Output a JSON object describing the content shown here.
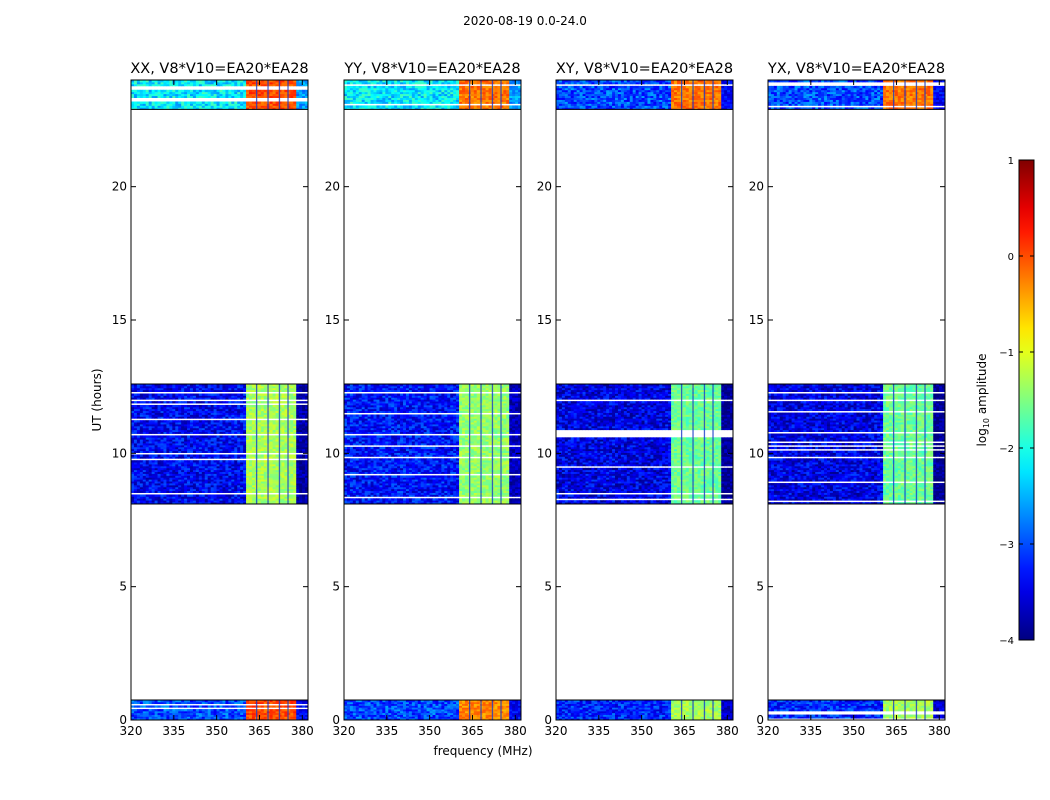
{
  "figure": {
    "suptitle": "2020-08-19 0.0-24.0",
    "xlabel": "frequency (MHz)",
    "ylabel": "UT (hours)"
  },
  "colorbar": {
    "label": "log10 amplitude",
    "label_base": "log",
    "label_sub": "10",
    "label_rest": " amplitude",
    "ticks": [
      "1",
      "0",
      "−1",
      "−2",
      "−3",
      "−4"
    ],
    "tick_values": [
      1,
      0,
      -1,
      -2,
      -3,
      -4
    ],
    "range": [
      -4,
      1
    ],
    "colormap": "jet",
    "colors": [
      "#00007f",
      "#0000ff",
      "#007fff",
      "#00ffff",
      "#7fff7f",
      "#ffff00",
      "#ff7f00",
      "#ff0000",
      "#7f0000"
    ]
  },
  "chart_data": [
    {
      "type": "heatmap",
      "title": "XX, V8*V10=EA20*EA28",
      "xlabel": "",
      "ylabel": "UT (hours)",
      "xlim": [
        320,
        382
      ],
      "ylim": [
        0,
        24
      ],
      "xticks": [
        320,
        335,
        350,
        365,
        380
      ],
      "yticks": [
        0,
        5,
        10,
        15,
        20
      ],
      "data_time_ranges_hours": [
        [
          0.0,
          0.75
        ],
        [
          8.1,
          12.6
        ],
        [
          22.9,
          24.0
        ]
      ],
      "bright_band_MHz": [
        360,
        378
      ],
      "band_log_amplitude": {
        "early": 0.0,
        "mid": -1.3,
        "late": 0.0
      },
      "background_log_amplitude": {
        "early": -3.0,
        "mid": -3.4,
        "late": -2.2
      }
    },
    {
      "type": "heatmap",
      "title": "YY, V8*V10=EA20*EA28",
      "xlabel": "frequency (MHz)",
      "ylabel": "",
      "xlim": [
        320,
        382
      ],
      "ylim": [
        0,
        24
      ],
      "xticks": [
        320,
        335,
        350,
        365,
        380
      ],
      "yticks": [
        0,
        5,
        10,
        15,
        20
      ],
      "data_time_ranges_hours": [
        [
          0.0,
          0.75
        ],
        [
          8.1,
          12.6
        ],
        [
          22.9,
          24.0
        ]
      ],
      "bright_band_MHz": [
        360,
        378
      ],
      "band_log_amplitude": {
        "early": -0.3,
        "mid": -1.4,
        "late": -0.2
      },
      "background_log_amplitude": {
        "early": -3.0,
        "mid": -3.3,
        "late": -2.2
      }
    },
    {
      "type": "heatmap",
      "title": "XY, V8*V10=EA20*EA28",
      "xlabel": "",
      "ylabel": "",
      "xlim": [
        320,
        382
      ],
      "ylim": [
        0,
        24
      ],
      "xticks": [
        320,
        335,
        350,
        365,
        380
      ],
      "yticks": [
        0,
        5,
        10,
        15,
        20
      ],
      "data_time_ranges_hours": [
        [
          0.0,
          0.75
        ],
        [
          8.1,
          12.6
        ],
        [
          22.9,
          24.0
        ]
      ],
      "bright_band_MHz": [
        360,
        378
      ],
      "band_log_amplitude": {
        "early": -1.3,
        "mid": -1.6,
        "late": -0.2
      },
      "background_log_amplitude": {
        "early": -3.2,
        "mid": -3.5,
        "late": -3.0
      }
    },
    {
      "type": "heatmap",
      "title": "YX, V8*V10=EA20*EA28",
      "xlabel": "",
      "ylabel": "",
      "xlim": [
        320,
        382
      ],
      "ylim": [
        0,
        24
      ],
      "xticks": [
        320,
        335,
        350,
        365,
        380
      ],
      "yticks": [
        0,
        5,
        10,
        15,
        20
      ],
      "data_time_ranges_hours": [
        [
          0.0,
          0.75
        ],
        [
          8.1,
          12.6
        ],
        [
          22.9,
          24.0
        ]
      ],
      "bright_band_MHz": [
        360,
        378
      ],
      "band_log_amplitude": {
        "early": -1.3,
        "mid": -1.6,
        "late": -0.2
      },
      "background_log_amplitude": {
        "early": -3.2,
        "mid": -3.5,
        "late": -3.0
      }
    }
  ]
}
